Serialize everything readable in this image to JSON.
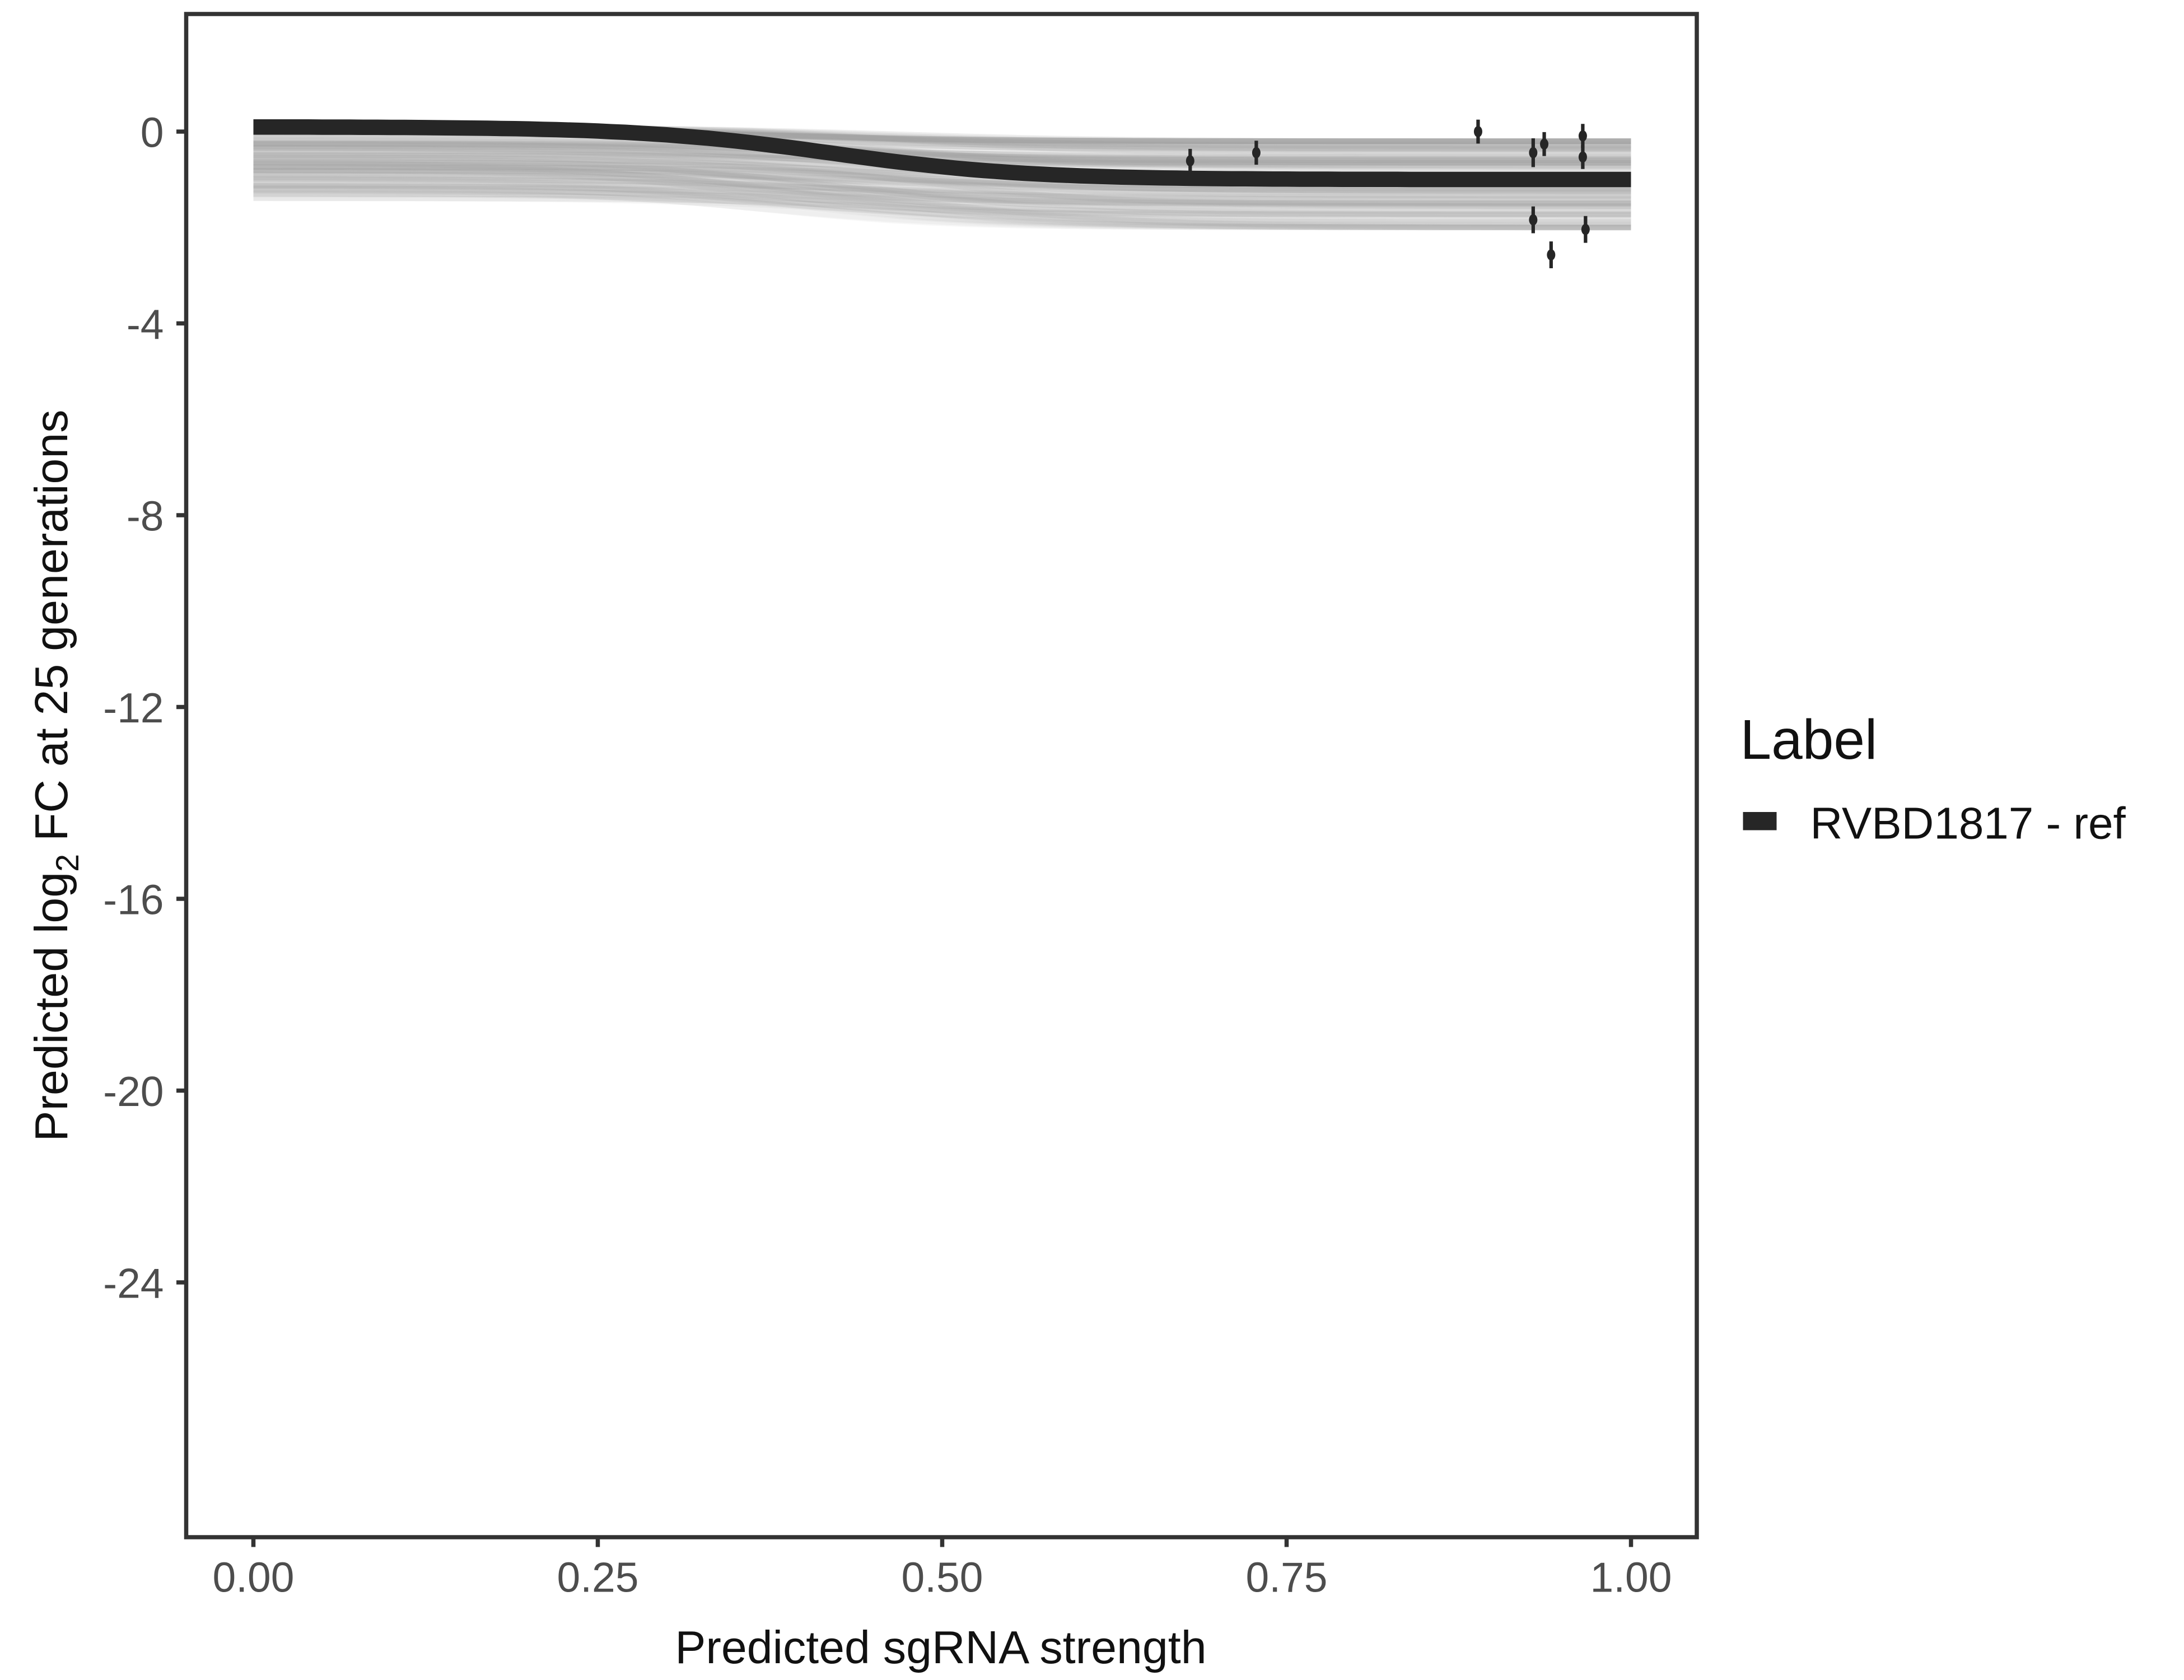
{
  "chart_data": {
    "type": "line",
    "xlabel": "Predicted sgRNA strength",
    "ylabel_pre": "Predicted  log",
    "ylabel_sub": "2",
    "ylabel_post": " FC at 25 generations",
    "xlim": [
      -0.045,
      1.045
    ],
    "ylim": [
      -29.3,
      2.45
    ],
    "x_ticks": [
      "0.00",
      "0.25",
      "0.50",
      "0.75",
      "1.00"
    ],
    "x_tick_values": [
      0,
      0.25,
      0.5,
      0.75,
      1
    ],
    "y_ticks": [
      "0",
      "-4",
      "-8",
      "-12",
      "-16",
      "-20",
      "-24"
    ],
    "y_tick_values": [
      0,
      -4,
      -8,
      -12,
      -16,
      -20,
      -24
    ],
    "grid": false,
    "legend": {
      "title": "Label",
      "position": "right",
      "entries": [
        {
          "label": "RVBD1817 - ref",
          "color": "#262626"
        }
      ]
    },
    "fit_curve": {
      "name": "RVBD1817 - ref",
      "y_at_0": 0.1,
      "y_at_1": -1.0,
      "midpoint": 0.42,
      "color": "#262626"
    },
    "posterior_draws": {
      "color": "#9e9e9e",
      "y_at_0_range": [
        0.1,
        -1.4
      ],
      "y_at_1_range": [
        -0.2,
        -2.0
      ]
    },
    "points": [
      {
        "x": 0.68,
        "y": -0.61,
        "err": 0.25
      },
      {
        "x": 0.728,
        "y": -0.44,
        "err": 0.25
      },
      {
        "x": 0.889,
        "y": 0.0,
        "err": 0.25
      },
      {
        "x": 0.929,
        "y": -0.44,
        "err": 0.3
      },
      {
        "x": 0.937,
        "y": -0.26,
        "err": 0.25
      },
      {
        "x": 0.965,
        "y": -0.09,
        "err": 0.25
      },
      {
        "x": 0.965,
        "y": -0.53,
        "err": 0.25
      },
      {
        "x": 0.929,
        "y": -1.84,
        "err": 0.28
      },
      {
        "x": 0.967,
        "y": -2.04,
        "err": 0.28
      },
      {
        "x": 0.942,
        "y": -2.57,
        "err": 0.28
      }
    ]
  }
}
